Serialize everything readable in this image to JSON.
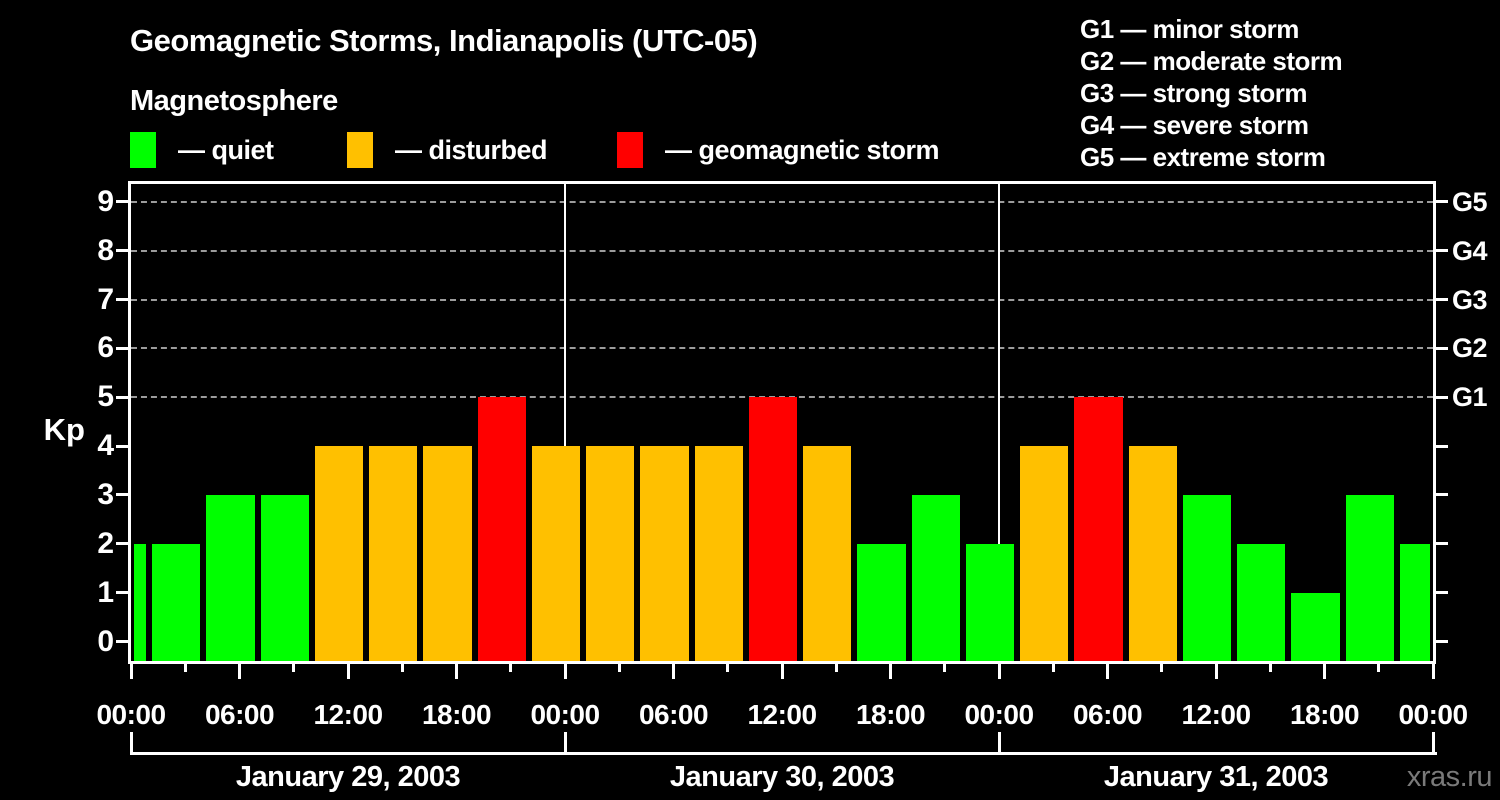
{
  "header": {
    "title": "Geomagnetic Storms, Indianapolis (UTC-05)",
    "subtitle": "Magnetosphere"
  },
  "legend": {
    "items": [
      {
        "label": "— quiet",
        "color": "#00ff00"
      },
      {
        "label": "— disturbed",
        "color": "#ffc000"
      },
      {
        "label": "— geomagnetic storm",
        "color": "#ff0000"
      }
    ]
  },
  "g_scale_legend": {
    "items": [
      {
        "label": "G1 — minor storm"
      },
      {
        "label": "G2 — moderate storm"
      },
      {
        "label": "G3 — strong storm"
      },
      {
        "label": "G4 — severe storm"
      },
      {
        "label": "G5 — extreme storm"
      }
    ]
  },
  "chart_data": {
    "type": "bar",
    "title": "Geomagnetic Storms, Indianapolis (UTC-05)",
    "ylabel": "Kp",
    "ylim": [
      0,
      9.5
    ],
    "x_hours_total": 72,
    "grid": "dashed horizontal lines at storm levels only",
    "grid_levels": [
      5,
      6,
      7,
      8,
      9
    ],
    "y_ticks": [
      0,
      1,
      2,
      3,
      4,
      5,
      6,
      7,
      8,
      9
    ],
    "right_axis_labels": [
      {
        "value": 5,
        "label": "G1"
      },
      {
        "value": 6,
        "label": "G2"
      },
      {
        "value": 7,
        "label": "G3"
      },
      {
        "value": 8,
        "label": "G4"
      },
      {
        "value": 9,
        "label": "G5"
      }
    ],
    "x_ticks": [
      {
        "hour": 0,
        "label": "00:00"
      },
      {
        "hour": 6,
        "label": "06:00"
      },
      {
        "hour": 12,
        "label": "12:00"
      },
      {
        "hour": 18,
        "label": "18:00"
      },
      {
        "hour": 24,
        "label": "00:00"
      },
      {
        "hour": 30,
        "label": "06:00"
      },
      {
        "hour": 36,
        "label": "12:00"
      },
      {
        "hour": 42,
        "label": "18:00"
      },
      {
        "hour": 48,
        "label": "00:00"
      },
      {
        "hour": 54,
        "label": "06:00"
      },
      {
        "hour": 60,
        "label": "12:00"
      },
      {
        "hour": 66,
        "label": "18:00"
      },
      {
        "hour": 72,
        "label": "00:00"
      }
    ],
    "x_minor_tick_hours": [
      3,
      9,
      15,
      21,
      27,
      33,
      39,
      45,
      51,
      57,
      63,
      69
    ],
    "day_boundary_hours": [
      24,
      48
    ],
    "days": [
      {
        "label": "January 29, 2003",
        "start_hour": 0,
        "end_hour": 24
      },
      {
        "label": "January 30, 2003",
        "start_hour": 24,
        "end_hour": 48
      },
      {
        "label": "January 31, 2003",
        "start_hour": 48,
        "end_hour": 72
      }
    ],
    "status_colors": {
      "quiet": "#00ff00",
      "disturbed": "#ffc000",
      "storm": "#ff0000"
    },
    "bars": [
      {
        "start": 0,
        "end": 1,
        "kp": 2,
        "status": "quiet"
      },
      {
        "start": 1,
        "end": 4,
        "kp": 2,
        "status": "quiet"
      },
      {
        "start": 4,
        "end": 7,
        "kp": 3,
        "status": "quiet"
      },
      {
        "start": 7,
        "end": 10,
        "kp": 3,
        "status": "quiet"
      },
      {
        "start": 10,
        "end": 13,
        "kp": 4,
        "status": "disturbed"
      },
      {
        "start": 13,
        "end": 16,
        "kp": 4,
        "status": "disturbed"
      },
      {
        "start": 16,
        "end": 19,
        "kp": 4,
        "status": "disturbed"
      },
      {
        "start": 19,
        "end": 22,
        "kp": 5,
        "status": "storm"
      },
      {
        "start": 22,
        "end": 25,
        "kp": 4,
        "status": "disturbed"
      },
      {
        "start": 25,
        "end": 28,
        "kp": 4,
        "status": "disturbed"
      },
      {
        "start": 28,
        "end": 31,
        "kp": 4,
        "status": "disturbed"
      },
      {
        "start": 31,
        "end": 34,
        "kp": 4,
        "status": "disturbed"
      },
      {
        "start": 34,
        "end": 37,
        "kp": 5,
        "status": "storm"
      },
      {
        "start": 37,
        "end": 40,
        "kp": 4,
        "status": "disturbed"
      },
      {
        "start": 40,
        "end": 43,
        "kp": 2,
        "status": "quiet"
      },
      {
        "start": 43,
        "end": 46,
        "kp": 3,
        "status": "quiet"
      },
      {
        "start": 46,
        "end": 49,
        "kp": 2,
        "status": "quiet"
      },
      {
        "start": 49,
        "end": 52,
        "kp": 4,
        "status": "disturbed"
      },
      {
        "start": 52,
        "end": 55,
        "kp": 5,
        "status": "storm"
      },
      {
        "start": 55,
        "end": 58,
        "kp": 4,
        "status": "disturbed"
      },
      {
        "start": 58,
        "end": 61,
        "kp": 3,
        "status": "quiet"
      },
      {
        "start": 61,
        "end": 64,
        "kp": 2,
        "status": "quiet"
      },
      {
        "start": 64,
        "end": 67,
        "kp": 1,
        "status": "quiet"
      },
      {
        "start": 67,
        "end": 70,
        "kp": 3,
        "status": "quiet"
      },
      {
        "start": 70,
        "end": 72,
        "kp": 2,
        "status": "quiet"
      }
    ]
  },
  "footer": {
    "watermark": "xras.ru"
  }
}
